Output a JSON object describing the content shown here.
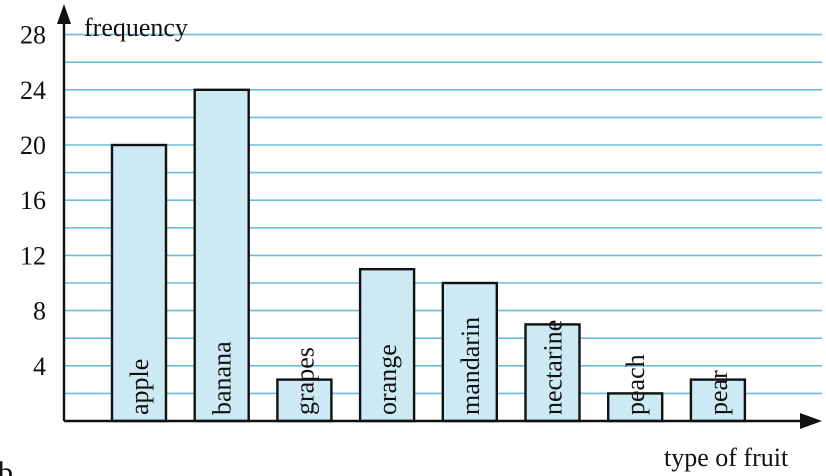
{
  "chart_data": {
    "type": "bar",
    "title": "",
    "ylabel": "frequency",
    "xlabel": "type of fruit",
    "categories": [
      "apple",
      "banana",
      "grapes",
      "orange",
      "mandarin",
      "nectarine",
      "peach",
      "pear"
    ],
    "values": [
      20,
      24,
      3,
      11,
      10,
      7,
      2,
      3
    ],
    "ylim": [
      0,
      28
    ],
    "yticks": [
      4,
      8,
      12,
      16,
      20,
      24,
      28
    ],
    "ytick_labels": [
      "4",
      "8",
      "12",
      "16",
      "20",
      "24",
      "28"
    ],
    "gridline_step": 2,
    "grid": true,
    "colors": {
      "bar_fill": "#cdeaf4",
      "bar_stroke": "#111111",
      "grid": "#69bfdc",
      "axis": "#111111"
    },
    "legend": "none"
  },
  "fragment_text": "b"
}
